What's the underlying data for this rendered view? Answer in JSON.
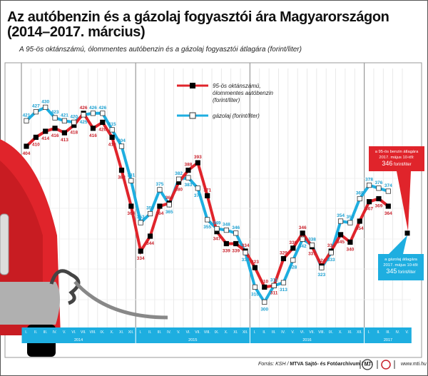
{
  "title": "Az autóbenzin és a gázolaj fogyasztói ára Magyarországon (2014–2017. március)",
  "subtitle": "A 95-ös oktánszámú, ólommentes autóbenzin és a gázolaj fogyasztói átlagára (forint/liter)",
  "chart_data": {
    "type": "line",
    "ylabel": "",
    "xlabel": "",
    "years": [
      "2014",
      "2015",
      "2016",
      "2017"
    ],
    "month_labels": [
      "I.",
      "II.",
      "III.",
      "IV.",
      "V.",
      "VI.",
      "VII.",
      "VIII.",
      "IX.",
      "X.",
      "XI.",
      "XII."
    ],
    "axis_months_2017": [
      "I.",
      "II.",
      "III.",
      "IV.",
      "V."
    ],
    "grid": true,
    "legend_placement": "top-center",
    "series": [
      {
        "name": "95-ös oktánszámú, ólommentes autóbenzin (forint/liter)",
        "color": "#e0242b",
        "marker": "filled-black-square",
        "values": [
          404,
          410,
          414,
          416,
          413,
          418,
          426,
          416,
          420,
          410,
          388,
          364,
          334,
          344,
          364,
          366,
          380,
          388,
          393,
          371,
          347,
          339,
          339,
          334,
          323,
          310,
          311,
          329,
          336,
          346,
          337,
          324,
          334,
          345,
          340,
          354,
          367,
          369,
          364
        ]
      },
      {
        "name": "gázolaj (forint/liter)",
        "color": "#1eaee0",
        "marker": "open-square",
        "values": [
          421,
          427,
          430,
          423,
          421,
          420,
          425,
          426,
          426,
          415,
          404,
          381,
          353,
          359,
          375,
          365,
          382,
          383,
          376,
          355,
          349,
          348,
          346,
          333,
          310,
          300,
          311,
          313,
          328,
          342,
          338,
          323,
          333,
          354,
          353,
          369,
          378,
          376,
          374
        ]
      }
    ],
    "annotations": [
      {
        "series": 0,
        "month": "2017 V.",
        "value": 346,
        "text_lines": [
          "a 95-ös benzin átlagára",
          "2017. május 10-től:"
        ],
        "value_text": "346",
        "unit_text": "forint/liter",
        "color": "#e0242b"
      },
      {
        "series": 1,
        "month": "2017 V.",
        "value": 345,
        "text_lines": [
          "a gázolaj átlagára",
          "2017. május 10-től:"
        ],
        "value_text": "345",
        "unit_text": "forint/liter",
        "color": "#1eaee0"
      }
    ]
  },
  "footer": {
    "source_prefix": "Forrás: KSH / ",
    "source_bold": "MTVA Sajtó- és Fotóarchívum / MTI",
    "url": "www.mti.hu",
    "logo_text": "MTVA"
  },
  "colors": {
    "axis_band": "#1eaee0",
    "car": "#e0242b"
  }
}
